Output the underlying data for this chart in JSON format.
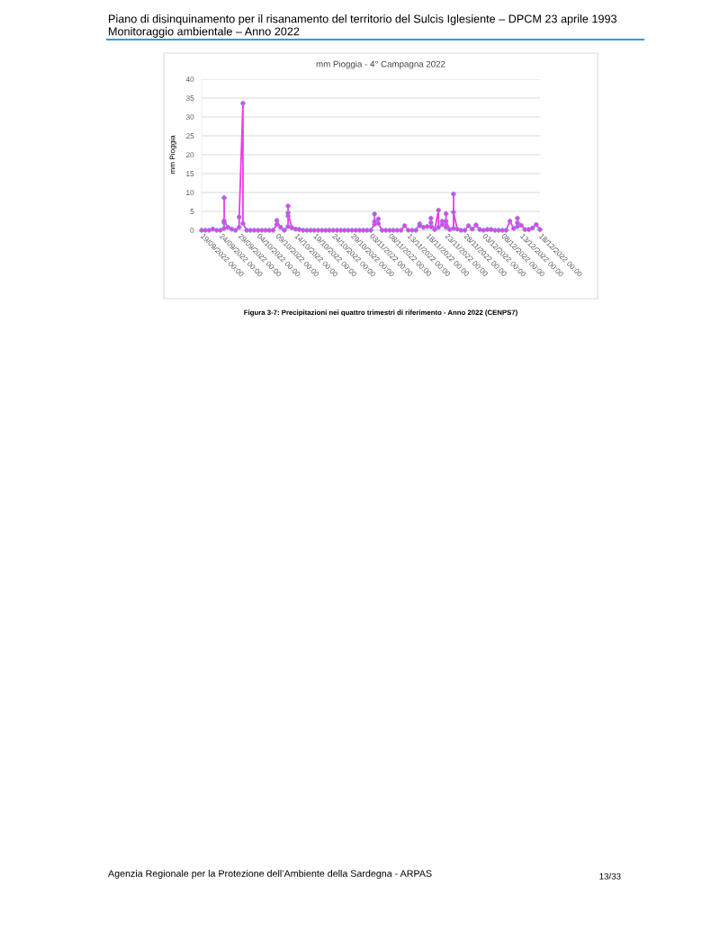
{
  "chart_data": {
    "type": "line",
    "title": "mm Pioggia - 4° Campagna 2022",
    "ylabel": "mm Pioggia",
    "annotations": [
      "Piano di disinquinamento per il risanamento del territorio del Sulcis Iglesiente – DPCM 23 aprile 1993",
      "Monitoraggio ambientale – Anno 2022",
      "Figura 3-7: Precipitazioni nei quattro trimestri di riferimento - Anno 2022 (CENPS7)",
      "Agenzia Regionale per la Protezione dell’Ambiente della Sardegna - ARPAS",
      "13/33"
    ],
    "x": [
      "2022-09-19",
      "2022-09-20",
      "2022-09-21",
      "2022-09-22",
      "2022-09-23",
      "2022-09-24",
      "2022-09-25",
      "2022-09-25",
      "2022-09-25",
      "2022-09-25",
      "2022-09-26",
      "2022-09-27",
      "2022-09-28",
      "2022-09-29",
      "2022-09-29",
      "2022-09-30",
      "2022-09-30",
      "2022-10-01",
      "2022-10-02",
      "2022-10-03",
      "2022-10-04",
      "2022-10-05",
      "2022-10-06",
      "2022-10-07",
      "2022-10-08",
      "2022-10-09",
      "2022-10-09",
      "2022-10-10",
      "2022-10-11",
      "2022-10-12",
      "2022-10-12",
      "2022-10-12",
      "2022-10-12",
      "2022-10-13",
      "2022-10-14",
      "2022-10-15",
      "2022-10-16",
      "2022-10-17",
      "2022-10-18",
      "2022-10-19",
      "2022-10-20",
      "2022-10-21",
      "2022-10-22",
      "2022-10-23",
      "2022-10-24",
      "2022-10-25",
      "2022-10-26",
      "2022-10-27",
      "2022-10-28",
      "2022-10-29",
      "2022-10-30",
      "2022-10-31",
      "2022-11-01",
      "2022-11-02",
      "2022-11-03",
      "2022-11-04",
      "2022-11-04",
      "2022-11-04",
      "2022-11-05",
      "2022-11-05",
      "2022-11-06",
      "2022-11-07",
      "2022-11-08",
      "2022-11-09",
      "2022-11-10",
      "2022-11-11",
      "2022-11-12",
      "2022-11-13",
      "2022-11-14",
      "2022-11-15",
      "2022-11-16",
      "2022-11-16",
      "2022-11-17",
      "2022-11-18",
      "2022-11-19",
      "2022-11-19",
      "2022-11-19",
      "2022-11-20",
      "2022-11-21",
      "2022-11-21",
      "2022-11-22",
      "2022-11-22",
      "2022-11-23",
      "2022-11-23",
      "2022-11-23",
      "2022-11-24",
      "2022-11-25",
      "2022-11-25",
      "2022-11-25",
      "2022-11-26",
      "2022-11-27",
      "2022-11-28",
      "2022-11-29",
      "2022-11-30",
      "2022-12-01",
      "2022-12-02",
      "2022-12-03",
      "2022-12-04",
      "2022-12-05",
      "2022-12-06",
      "2022-12-07",
      "2022-12-08",
      "2022-12-09",
      "2022-12-10",
      "2022-12-11",
      "2022-12-12",
      "2022-12-12",
      "2022-12-12",
      "2022-12-13",
      "2022-12-14",
      "2022-12-15",
      "2022-12-16",
      "2022-12-17",
      "2022-12-18"
    ],
    "series": [
      {
        "color": "#ee3ce6",
        "values": [
          0,
          0,
          0,
          0.3,
          0,
          0,
          0.5,
          2.0,
          8.6,
          2.5,
          0.8,
          0.3,
          0,
          0.8,
          3.5,
          33.6,
          1.8,
          0,
          0,
          0,
          0,
          0,
          0,
          0,
          0,
          1.5,
          2.6,
          0.8,
          0,
          1.0,
          3.8,
          6.4,
          4.6,
          0.7,
          0.3,
          0.2,
          0,
          0,
          0,
          0,
          0,
          0,
          0,
          0,
          0,
          0,
          0,
          0,
          0,
          0,
          0,
          0,
          0,
          0,
          0,
          1.6,
          4.3,
          2.3,
          3.0,
          1.8,
          0,
          0,
          0,
          0,
          0,
          0,
          1.2,
          0,
          0,
          0,
          1.7,
          1.2,
          0.8,
          1.0,
          0.9,
          3.2,
          2.0,
          0.2,
          5.3,
          0.8,
          1.5,
          2.4,
          0.8,
          4.4,
          2.4,
          0.2,
          0.5,
          9.6,
          4.8,
          0.3,
          0,
          0,
          1.2,
          0.3,
          1.4,
          0.2,
          0,
          0.2,
          0.2,
          0,
          0,
          0,
          0,
          2.4,
          0.5,
          1.0,
          3.2,
          2.0,
          1.3,
          0.2,
          0.2,
          0.6,
          1.5,
          0.2
        ]
      }
    ],
    "xlim": [
      "2022-09-19",
      "2022-12-18"
    ],
    "xticks": [
      {
        "value": "2022-09-19",
        "label": "19/09/2022 00:00"
      },
      {
        "value": "2022-09-24",
        "label": "24/09/2022 00:00"
      },
      {
        "value": "2022-09-29",
        "label": "29/09/2022 00:00"
      },
      {
        "value": "2022-10-04",
        "label": "04/10/2022 00:00"
      },
      {
        "value": "2022-10-09",
        "label": "09/10/2022 00:00"
      },
      {
        "value": "2022-10-14",
        "label": "14/10/2022 00:00"
      },
      {
        "value": "2022-10-19",
        "label": "19/10/2022 00:00"
      },
      {
        "value": "2022-10-24",
        "label": "24/10/2022 00:00"
      },
      {
        "value": "2022-10-29",
        "label": "29/10/2022 00:00"
      },
      {
        "value": "2022-11-03",
        "label": "03/11/2022 00:00"
      },
      {
        "value": "2022-11-08",
        "label": "08/11/2022 00:00"
      },
      {
        "value": "2022-11-13",
        "label": "13/11/2022 00:00"
      },
      {
        "value": "2022-11-18",
        "label": "18/11/2022 00:00"
      },
      {
        "value": "2022-11-23",
        "label": "23/11/2022 00:00"
      },
      {
        "value": "2022-11-28",
        "label": "28/11/2022 00:00"
      },
      {
        "value": "2022-12-03",
        "label": "03/12/2022 00:00"
      },
      {
        "value": "2022-12-08",
        "label": "08/12/2022 00:00"
      },
      {
        "value": "2022-12-13",
        "label": "13/12/2022 00:00"
      },
      {
        "value": "2022-12-18",
        "label": "18/12/2022 00:00"
      }
    ],
    "ylim": [
      0,
      40
    ],
    "yticks": [
      0,
      5,
      10,
      15,
      20,
      25,
      30,
      35,
      40
    ],
    "grid": "y",
    "marker": "circle",
    "line_style": "solid"
  }
}
